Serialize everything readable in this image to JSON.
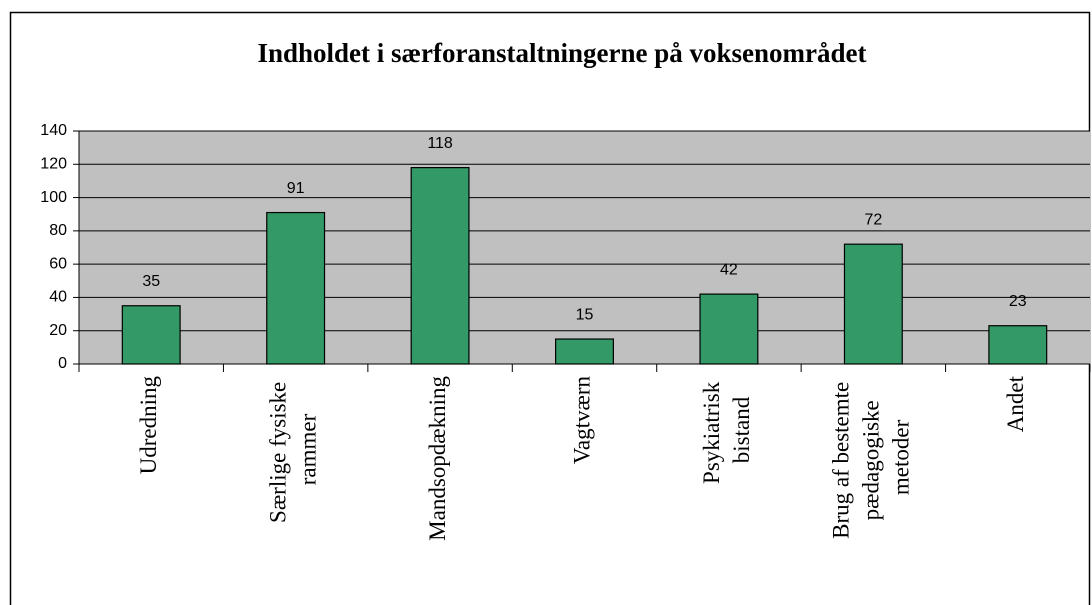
{
  "chart_data": {
    "type": "bar",
    "title": "Indholdet i særforanstaltningerne på voksenområdet",
    "categories": [
      "Udredning",
      "Særlige fysiske rammer",
      "Mandsopdækning",
      "Vagtværn",
      "Psykiatrisk bistand",
      "Brug af bestemte pædagogiske metoder",
      "Andet"
    ],
    "values": [
      35,
      91,
      118,
      15,
      42,
      72,
      23
    ],
    "color": "#339966",
    "plot_background": "#c0c0c0",
    "ylim": [
      0,
      140
    ],
    "yticks": [
      0,
      20,
      40,
      60,
      80,
      100,
      120,
      140
    ],
    "grid": true
  }
}
